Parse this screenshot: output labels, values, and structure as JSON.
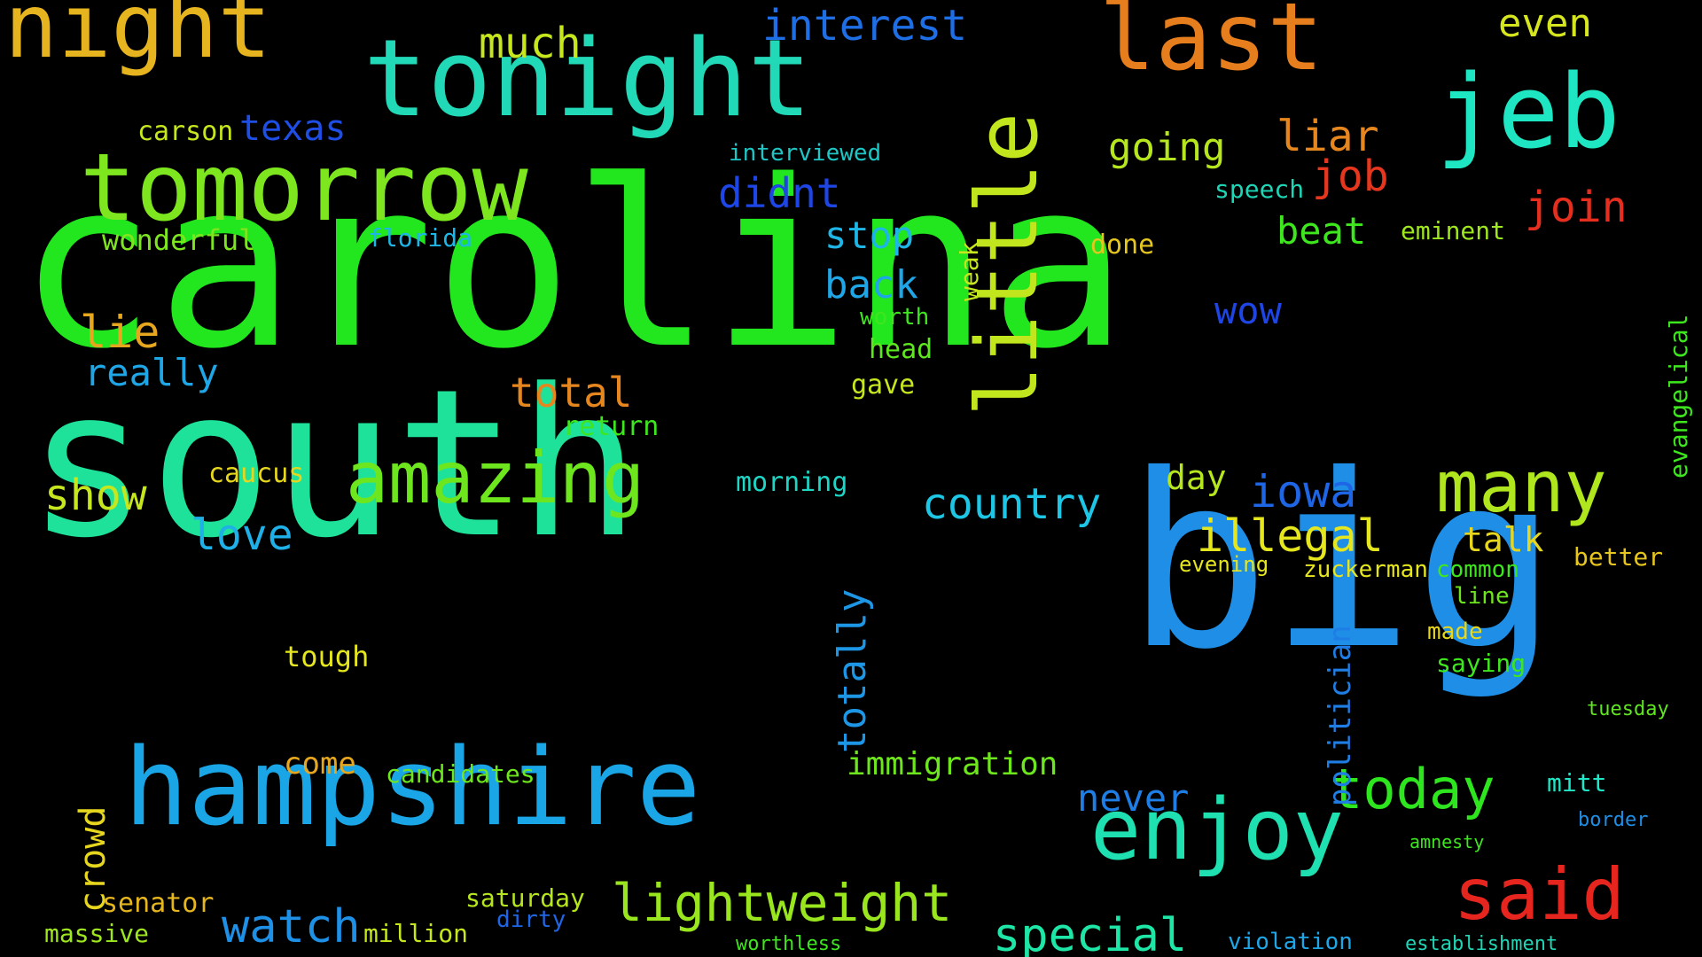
{
  "cloud": {
    "background_color": "#000000",
    "words": [
      {
        "text": "carolina",
        "color": "#22e61e",
        "weight": 100
      },
      {
        "text": "south",
        "color": "#1fe29a",
        "weight": 85
      },
      {
        "text": "big",
        "color": "#1e8ee6",
        "weight": 70
      },
      {
        "text": "hampshire",
        "color": "#1aa6e6",
        "weight": 45
      },
      {
        "text": "tonight",
        "color": "#21d9b7",
        "weight": 42
      },
      {
        "text": "tomorrow",
        "color": "#7ee61e",
        "weight": 40
      },
      {
        "text": "night",
        "color": "#e6b41e",
        "weight": 36
      },
      {
        "text": "last",
        "color": "#e67e1e",
        "weight": 36
      },
      {
        "text": "jeb",
        "color": "#1ee6c2",
        "weight": 36
      },
      {
        "text": "little",
        "color": "#c2e61e",
        "weight": 34
      },
      {
        "text": "enjoy",
        "color": "#1ee0b0",
        "weight": 34
      },
      {
        "text": "amazing",
        "color": "#6ee61e",
        "weight": 30
      },
      {
        "text": "said",
        "color": "#e6261e",
        "weight": 30
      },
      {
        "text": "many",
        "color": "#b0e61e",
        "weight": 28
      },
      {
        "text": "lightweight",
        "color": "#9ae61e",
        "weight": 22
      },
      {
        "text": "today",
        "color": "#2ee61e",
        "weight": 22
      },
      {
        "text": "watch",
        "color": "#1e90e6",
        "weight": 20
      },
      {
        "text": "special",
        "color": "#1ee6a6",
        "weight": 20
      },
      {
        "text": "illegal",
        "color": "#e6e61e",
        "weight": 18
      },
      {
        "text": "country",
        "color": "#1ec6e6",
        "weight": 18
      },
      {
        "text": "iowa",
        "color": "#1e66e6",
        "weight": 18
      },
      {
        "text": "show",
        "color": "#c6e61e",
        "weight": 17
      },
      {
        "text": "love",
        "color": "#1eb0e6",
        "weight": 17
      },
      {
        "text": "interest",
        "color": "#1e6ee6",
        "weight": 17
      },
      {
        "text": "liar",
        "color": "#e6861e",
        "weight": 17
      },
      {
        "text": "totally",
        "color": "#1e96e6",
        "weight": 16
      },
      {
        "text": "much",
        "color": "#c6e61e",
        "weight": 16
      },
      {
        "text": "going",
        "color": "#b6e61e",
        "weight": 16
      },
      {
        "text": "job",
        "color": "#e6361e",
        "weight": 16
      },
      {
        "text": "join",
        "color": "#e62e1e",
        "weight": 16
      },
      {
        "text": "beat",
        "color": "#3ee61e",
        "weight": 15
      },
      {
        "text": "even",
        "color": "#d6e61e",
        "weight": 15
      },
      {
        "text": "back",
        "color": "#1ea6e6",
        "weight": 15
      },
      {
        "text": "total",
        "color": "#e6861e",
        "weight": 15
      },
      {
        "text": "stop",
        "color": "#1eb6e6",
        "weight": 15
      },
      {
        "text": "didnt",
        "color": "#1e46e6",
        "weight": 15
      },
      {
        "text": "crowd",
        "color": "#e6d61e",
        "weight": 14
      },
      {
        "text": "lie",
        "color": "#e6a61e",
        "weight": 14
      },
      {
        "text": "really",
        "color": "#1ea6e6",
        "weight": 14
      },
      {
        "text": "never",
        "color": "#1e7ee6",
        "weight": 14
      },
      {
        "text": "politician",
        "color": "#1e7ee6",
        "weight": 13
      },
      {
        "text": "texas",
        "color": "#1e4ee6",
        "weight": 13
      },
      {
        "text": "tomorrow_",
        "color": "#7ee61e",
        "weight": 0
      },
      {
        "text": "day",
        "color": "#b6e61e",
        "weight": 13
      },
      {
        "text": "talk",
        "color": "#e6d61e",
        "weight": 13
      },
      {
        "text": "immigration",
        "color": "#6ee61e",
        "weight": 12
      },
      {
        "text": "come",
        "color": "#e6a61e",
        "weight": 12
      },
      {
        "text": "tough",
        "color": "#e6e61e",
        "weight": 11
      },
      {
        "text": "wow",
        "color": "#1e46e6",
        "weight": 12
      },
      {
        "text": "weak",
        "color": "#c6e61e",
        "weight": 11
      },
      {
        "text": "wonderful",
        "color": "#7ee61e",
        "weight": 11
      },
      {
        "text": "morning",
        "color": "#1ed6c6",
        "weight": 11
      },
      {
        "text": "senator",
        "color": "#e6b61e",
        "weight": 11
      },
      {
        "text": "saturday",
        "color": "#b6e61e",
        "weight": 10
      },
      {
        "text": "million",
        "color": "#c6e61e",
        "weight": 10
      },
      {
        "text": "massive",
        "color": "#9ee61e",
        "weight": 10
      },
      {
        "text": "caucus",
        "color": "#e6d61e",
        "weight": 10
      },
      {
        "text": "candidates",
        "color": "#6ee61e",
        "weight": 10
      },
      {
        "text": "head",
        "color": "#5ee61e",
        "weight": 10
      },
      {
        "text": "done",
        "color": "#e6c61e",
        "weight": 10
      },
      {
        "text": "speech",
        "color": "#1ed6b6",
        "weight": 10
      },
      {
        "text": "interviewed",
        "color": "#1ec6c6",
        "weight": 9
      },
      {
        "text": "florida",
        "color": "#1eb6e6",
        "weight": 9
      },
      {
        "text": "carson",
        "color": "#c6e61e",
        "weight": 9
      },
      {
        "text": "return",
        "color": "#3ee61e",
        "weight": 9
      },
      {
        "text": "gave",
        "color": "#c6e61e",
        "weight": 9
      },
      {
        "text": "worth",
        "color": "#3ee61e",
        "weight": 9
      },
      {
        "text": "better",
        "color": "#e6c61e",
        "weight": 9
      },
      {
        "text": "eminent",
        "color": "#9ee61e",
        "weight": 9
      },
      {
        "text": "evangelical",
        "color": "#3ee61e",
        "weight": 9
      },
      {
        "text": "dirty",
        "color": "#1e66e6",
        "weight": 8
      },
      {
        "text": "zuckerman",
        "color": "#e6e61e",
        "weight": 8
      },
      {
        "text": "mitt",
        "color": "#1ee6c6",
        "weight": 8
      },
      {
        "text": "amnesty",
        "color": "#3ee61e",
        "weight": 8
      },
      {
        "text": "border",
        "color": "#1e8ee6",
        "weight": 8
      },
      {
        "text": "tuesday",
        "color": "#5ee61e",
        "weight": 8
      },
      {
        "text": "saying",
        "color": "#3ee61e",
        "weight": 8
      },
      {
        "text": "made",
        "color": "#e6d61e",
        "weight": 8
      },
      {
        "text": "line",
        "color": "#6ee61e",
        "weight": 8
      },
      {
        "text": "common",
        "color": "#3ee61e",
        "weight": 8
      },
      {
        "text": "evening",
        "color": "#e6e61e",
        "weight": 8
      },
      {
        "text": "establishment",
        "color": "#1ed6b6",
        "weight": 8
      },
      {
        "text": "worthless",
        "color": "#3ee61e",
        "weight": 8
      },
      {
        "text": "violation",
        "color": "#1ea6e6",
        "weight": 8
      }
    ]
  }
}
